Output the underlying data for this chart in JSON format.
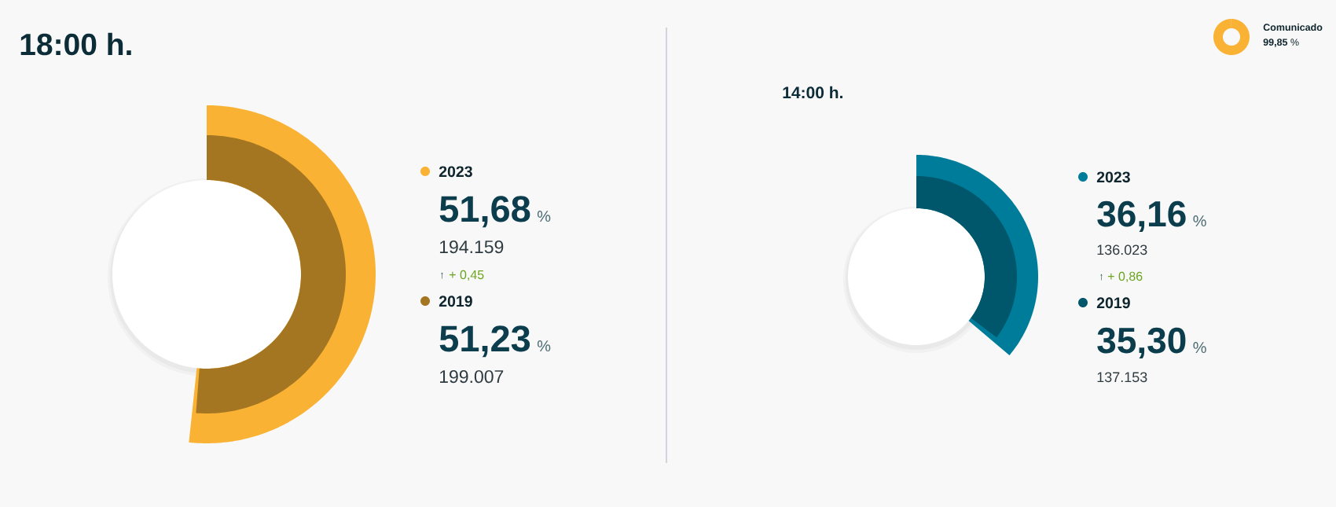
{
  "chart_data": [
    {
      "type": "other",
      "title": "18:00 h.",
      "ylabel": "%",
      "legend": "right",
      "series": [
        {
          "name": "2023",
          "color": "#f9b233",
          "values": [
            51.68
          ],
          "value_labels": [
            "51,68"
          ]
        },
        {
          "name": "2019",
          "color": "#a57622",
          "values": [
            51.23
          ],
          "value_labels": [
            "51,23"
          ]
        }
      ],
      "annotations": [
        "194.159",
        "↑",
        "+ 0,45",
        "199.007"
      ]
    },
    {
      "type": "other",
      "title": "14:00 h.",
      "ylabel": "%",
      "legend": "right",
      "series": [
        {
          "name": "2023",
          "color": "#007c9b",
          "values": [
            36.16
          ],
          "value_labels": [
            "36,16"
          ]
        },
        {
          "name": "2019",
          "color": "#00566b",
          "values": [
            35.3
          ],
          "value_labels": [
            "35,30"
          ]
        }
      ],
      "annotations": [
        "136.023",
        "↑",
        "+ 0,86",
        "137.153"
      ]
    },
    {
      "type": "other",
      "categories": [
        "Comunicado"
      ],
      "values": [
        99.85
      ],
      "colors": [
        "#f9b233"
      ],
      "value_labels": [
        "**99,85** %"
      ]
    }
  ]
}
